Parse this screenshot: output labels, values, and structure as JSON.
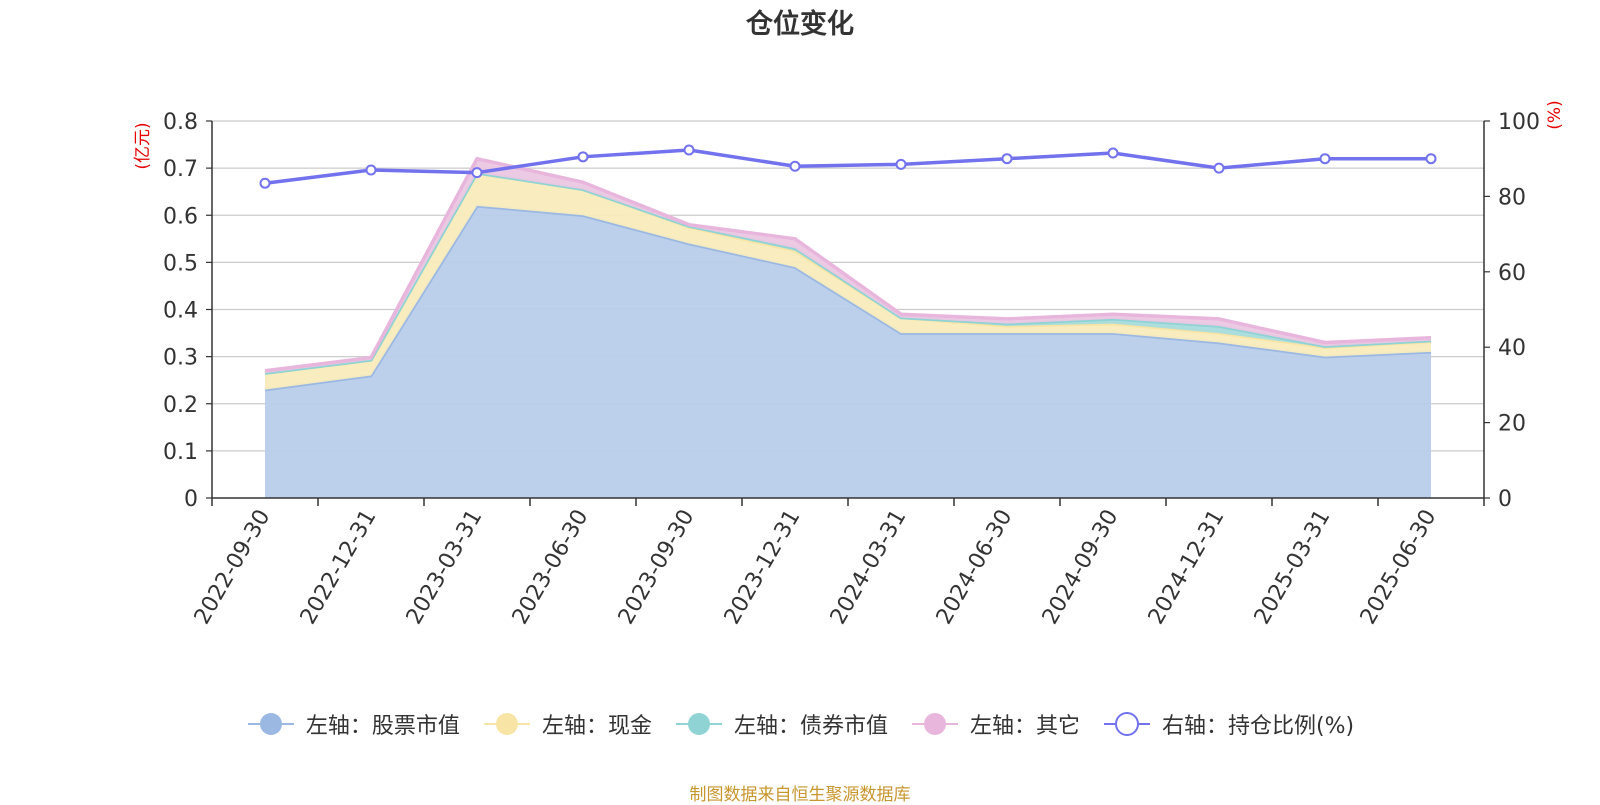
{
  "chart_data": {
    "type": "area",
    "title": "仓位变化",
    "ylabel_left": "(亿元)",
    "ylabel_right": "(%)",
    "categories": [
      "2022-09-30",
      "2022-12-31",
      "2023-03-31",
      "2023-06-30",
      "2023-09-30",
      "2023-12-31",
      "2024-03-31",
      "2024-06-30",
      "2024-09-30",
      "2024-12-31",
      "2025-03-31",
      "2025-06-30"
    ],
    "left_axis": {
      "min": 0,
      "max": 0.8,
      "ticks": [
        "0",
        "0.1",
        "0.2",
        "0.3",
        "0.4",
        "0.5",
        "0.6",
        "0.7",
        "0.8"
      ]
    },
    "right_axis": {
      "min": 0,
      "max": 100,
      "ticks": [
        "0",
        "20",
        "40",
        "60",
        "80",
        "100"
      ]
    },
    "grid": true,
    "legend_position": "bottom",
    "stacked": true,
    "series": [
      {
        "name": "左轴：股票市值",
        "axis": "left",
        "color": "#9bb8e3",
        "fill": "#b8cdea",
        "values": [
          0.23,
          0.26,
          0.62,
          0.6,
          0.54,
          0.49,
          0.35,
          0.35,
          0.35,
          0.33,
          0.3,
          0.31
        ]
      },
      {
        "name": "左轴：现金",
        "axis": "left",
        "color": "#f8e4a5",
        "fill": "#f9ecbd",
        "values": [
          0.035,
          0.033,
          0.07,
          0.055,
          0.035,
          0.035,
          0.033,
          0.015,
          0.02,
          0.02,
          0.02,
          0.022
        ]
      },
      {
        "name": "左轴：债券市值",
        "axis": "left",
        "color": "#8fd3d4",
        "fill": "#a8dcdd",
        "values": [
          0,
          0,
          0,
          0,
          0.002,
          0.005,
          0,
          0.005,
          0.01,
          0.015,
          0.002,
          0.002
        ]
      },
      {
        "name": "左轴：其它",
        "axis": "left",
        "color": "#e8b6dc",
        "fill": "#ecc7e3",
        "values": [
          0.005,
          0.005,
          0.03,
          0.015,
          0.003,
          0.02,
          0.007,
          0.01,
          0.01,
          0.015,
          0.008,
          0.006
        ]
      },
      {
        "name": "右轴：持仓比例(%)",
        "axis": "right",
        "color": "#7272ee",
        "values": [
          83.5,
          87,
          86.3,
          90.5,
          92.3,
          88,
          88.5,
          90,
          91.5,
          87.5,
          90,
          90
        ]
      }
    ],
    "source": "制图数据来自恒生聚源数据库"
  },
  "legend_markers": [
    "filled-circle",
    "filled-circle",
    "filled-circle",
    "filled-circle",
    "hollow-circle"
  ]
}
